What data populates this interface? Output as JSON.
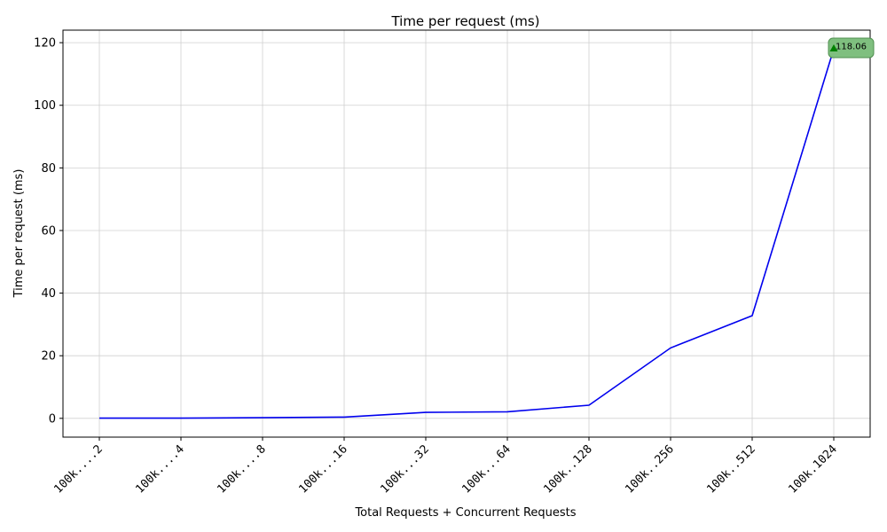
{
  "chart_data": {
    "type": "line",
    "title": "Time per request (ms)",
    "xlabel": "Total Requests + Concurrent Requests",
    "ylabel": "Time per request (ms)",
    "categories": [
      "100k....2",
      "100k....4",
      "100k....8",
      "100k...16",
      "100k...32",
      "100k...64",
      "100k..128",
      "100k..256",
      "100k..512",
      "100k.1024"
    ],
    "series": [
      {
        "values": [
          0.05,
          0.05,
          0.2,
          0.4,
          1.9,
          2.1,
          4.2,
          22.5,
          32.8,
          118.06
        ],
        "color": "#0000ee"
      }
    ],
    "ylim": [
      -6,
      124
    ],
    "yticks": [
      0,
      20,
      40,
      60,
      80,
      100,
      120
    ],
    "grid": true,
    "annotation": {
      "index": 9,
      "text": "118.06",
      "marker_color": "#008000",
      "box_color": "#7fbf7f"
    }
  }
}
